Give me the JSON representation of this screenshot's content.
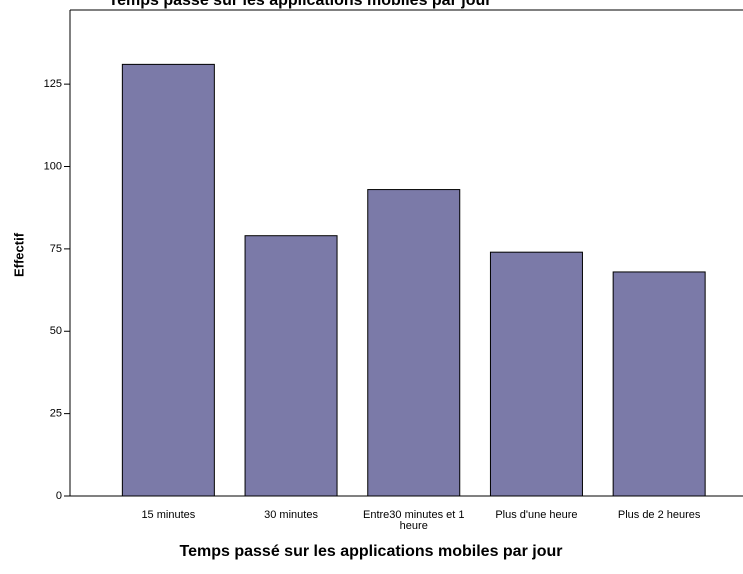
{
  "chart_data": {
    "type": "bar",
    "title": "Temps passé sur les applications mobiles par jour",
    "x_label": "Temps passé sur les applications mobiles par jour",
    "y_label": "Effectif",
    "categories": [
      "15 minutes",
      "30 minutes",
      "Entre30 minutes et 1 heure",
      "Plus d'une heure",
      "Plus de 2 heures"
    ],
    "values": [
      131,
      79,
      93,
      74,
      68
    ],
    "color": "#7b7aa8",
    "ylim": [
      0,
      147.5
    ],
    "yticks": [
      0,
      25,
      50,
      75,
      100,
      125
    ]
  }
}
